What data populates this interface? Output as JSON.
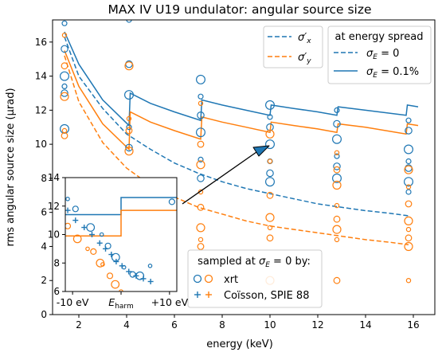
{
  "chart_data": {
    "type": "line",
    "title": "MAX IV U19 undulator: angular source size",
    "xlabel": "energy (keV)",
    "ylabel": "rms angular source size (μrad)",
    "xlim": [
      0.9,
      16.9
    ],
    "ylim": [
      0,
      17.3
    ],
    "xticks": [
      2,
      4,
      6,
      8,
      10,
      12,
      14,
      16
    ],
    "yticks": [
      0,
      2,
      4,
      6,
      8,
      10,
      12,
      14,
      16
    ],
    "grid": false,
    "colors": {
      "x": "#1f77b4",
      "y": "#ff7f0e"
    },
    "legend_components": {
      "placement": "top-right",
      "items": [
        {
          "label": "σ′x",
          "style": "dashed",
          "color": "#1f77b4"
        },
        {
          "label": "σ′y",
          "style": "dashed",
          "color": "#ff7f0e"
        }
      ]
    },
    "legend_spread": {
      "placement": "top-right",
      "title": "at energy spread",
      "items": [
        {
          "label": "σE = 0",
          "style": "dashed"
        },
        {
          "label": "σE = 0.1%",
          "style": "solid"
        }
      ]
    },
    "legend_samples": {
      "placement": "bottom-center",
      "title": "sampled at σE = 0 by:",
      "items": [
        {
          "label": "xrt",
          "marker": "circle"
        },
        {
          "label": "Coïsson, SPIE 88",
          "marker": "plus"
        }
      ]
    },
    "series": [
      {
        "name": "σ′x, σE = 0",
        "style": "dashed",
        "color": "#1f77b4",
        "x": [
          1.4,
          2,
          3,
          4,
          5,
          6,
          7,
          8,
          9,
          10,
          11,
          12,
          13,
          14,
          15,
          15.8
        ],
        "y": [
          16.3,
          14.0,
          12.1,
          10.6,
          9.7,
          8.9,
          8.3,
          7.8,
          7.4,
          7.1,
          6.8,
          6.5,
          6.3,
          6.1,
          5.95,
          5.8
        ]
      },
      {
        "name": "σ′y, σE = 0",
        "style": "dashed",
        "color": "#ff7f0e",
        "x": [
          1.4,
          2,
          3,
          4,
          5,
          6,
          7,
          8,
          9,
          10,
          11,
          12,
          13,
          14,
          15,
          15.8
        ],
        "y": [
          15.2,
          12.5,
          10.1,
          8.6,
          7.6,
          6.9,
          6.3,
          5.9,
          5.5,
          5.2,
          5.0,
          4.8,
          4.6,
          4.4,
          4.25,
          4.1
        ]
      },
      {
        "name": "σ′x, σE = 0.1%",
        "style": "solid",
        "color": "#1f77b4",
        "x": [
          1.4,
          2,
          3,
          4.1,
          4.15,
          5,
          6,
          7.1,
          7.15,
          8,
          9,
          10,
          10.05,
          11,
          12,
          12.8,
          12.85,
          14,
          15.7,
          15.75,
          16.2
        ],
        "y": [
          16.6,
          14.7,
          12.6,
          11.1,
          13.0,
          12.4,
          11.9,
          11.4,
          12.6,
          12.3,
          12.0,
          11.7,
          12.3,
          12.1,
          11.9,
          11.7,
          12.2,
          12.0,
          11.7,
          12.3,
          12.2
        ]
      },
      {
        "name": "σ′y, σE = 0.1%",
        "style": "solid",
        "color": "#ff7f0e",
        "x": [
          1.4,
          2,
          3,
          4.1,
          4.15,
          5,
          6,
          7.1,
          7.15,
          8,
          9,
          10,
          10.05,
          11,
          12,
          12.8,
          12.85,
          14,
          15.7,
          15.75,
          16.2
        ],
        "y": [
          15.5,
          13.4,
          11.2,
          9.7,
          11.9,
          11.3,
          10.8,
          10.3,
          11.6,
          11.3,
          11.0,
          10.7,
          11.3,
          11.1,
          10.9,
          10.7,
          11.2,
          11.0,
          10.6,
          11.2,
          11.1
        ]
      }
    ],
    "xrt_samples": [
      {
        "name": "xrt σ′x",
        "color": "#1f77b4",
        "x": [
          1.4,
          1.4,
          1.4,
          1.4,
          1.4,
          1.4,
          4.1,
          4.1,
          4.1,
          4.1,
          4.1,
          7.1,
          7.1,
          7.1,
          7.1,
          7.1,
          7.1,
          10,
          10,
          10,
          10,
          10,
          10,
          10,
          12.8,
          12.8,
          12.8,
          12.8,
          12.8,
          12.8,
          15.8,
          15.8,
          15.8,
          15.8,
          15.8,
          15.8,
          15.8
        ],
        "y": [
          17.1,
          15.6,
          14.0,
          13.4,
          13.0,
          10.9,
          17.3,
          14.7,
          12.9,
          11.0,
          9.8,
          13.8,
          12.8,
          11.7,
          10.7,
          9.1,
          8.0,
          12.3,
          11.6,
          11.0,
          10.0,
          9.0,
          8.3,
          7.8,
          12.0,
          11.2,
          10.3,
          9.3,
          8.7,
          8.0,
          11.4,
          10.8,
          9.7,
          9.0,
          8.6,
          7.8,
          7.2
        ]
      },
      {
        "name": "xrt σ′y",
        "color": "#ff7f0e",
        "x": [
          1.4,
          1.4,
          1.4,
          1.4,
          1.4,
          4.1,
          4.1,
          4.1,
          4.1,
          7.1,
          7.1,
          7.1,
          7.1,
          7.1,
          7.1,
          7.1,
          7.1,
          10,
          10,
          10,
          10,
          10,
          10,
          10,
          12.8,
          12.8,
          12.8,
          12.8,
          12.8,
          12.8,
          12.8,
          12.8,
          15.8,
          15.8,
          15.8,
          15.8,
          15.8,
          15.8,
          15.8,
          15.8
        ],
        "y": [
          16.4,
          14.6,
          12.8,
          10.8,
          10.5,
          14.6,
          11.5,
          10.8,
          9.6,
          12.4,
          10.0,
          8.8,
          7.2,
          6.3,
          5.1,
          4.4,
          4.0,
          10.6,
          9.0,
          7.0,
          5.7,
          5.1,
          4.5,
          2.0,
          9.5,
          8.5,
          7.6,
          6.4,
          5.6,
          5.0,
          4.4,
          2.0,
          8.5,
          7.5,
          6.5,
          5.5,
          5.0,
          4.5,
          4.0,
          2.0
        ]
      }
    ],
    "inset": {
      "xtick_labels": [
        "-10 eV",
        "Eharm",
        "+10 eV"
      ],
      "xlim": [
        -11.5,
        11.5
      ],
      "ylim": [
        6,
        14
      ],
      "yticks": [
        6,
        8,
        10,
        12,
        14
      ],
      "lines": [
        {
          "name": "σ′x, σE = 0.1%",
          "color": "#1f77b4",
          "x": [
            -11.5,
            0,
            0,
            11.5
          ],
          "y": [
            11.4,
            11.4,
            12.6,
            12.6
          ]
        },
        {
          "name": "σ′y, σE = 0.1%",
          "color": "#ff7f0e",
          "x": [
            -11.5,
            0,
            0,
            11.5
          ],
          "y": [
            9.9,
            9.9,
            11.7,
            11.7
          ]
        }
      ],
      "xrt": [
        {
          "color": "#1f77b4",
          "x": [
            -11,
            -9.4,
            -6.3,
            -4,
            -2.7,
            -1.1,
            0.6,
            2.4,
            3.9,
            6,
            10.5
          ],
          "y": [
            12.5,
            11.8,
            10.5,
            10.0,
            9.2,
            8.4,
            7.7,
            7.2,
            7.1,
            7.8,
            12.3
          ]
        },
        {
          "color": "#ff7f0e",
          "x": [
            -11,
            -9,
            -6.9,
            -5.7,
            -4.3,
            -3.8,
            -2.3,
            -1.2,
            0
          ],
          "y": [
            10.6,
            9.7,
            9.0,
            8.8,
            8.0,
            7.9,
            7.1,
            6.5,
            6.0
          ]
        }
      ],
      "coisson": {
        "color": "#1f77b4",
        "x": [
          -11,
          -9.4,
          -7.6,
          -6,
          -4.4,
          -3.2,
          -2,
          -1,
          0.2,
          1.6,
          3.1,
          4.6,
          6.1
        ],
        "y": [
          11.7,
          11.0,
          10.5,
          10.0,
          9.4,
          9.0,
          8.6,
          8.1,
          7.8,
          7.4,
          7.1,
          6.9,
          6.7
        ]
      }
    },
    "annotation": {
      "arrow": true
    }
  }
}
